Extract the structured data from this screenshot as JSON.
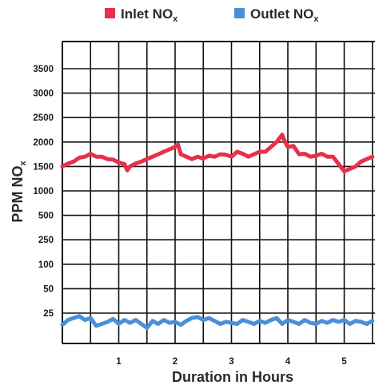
{
  "chart_data": {
    "type": "line",
    "xlabel": "Duration in Hours",
    "ylabel": "PPM NO",
    "ylabel_subscript": "x",
    "x_ticks": [
      "1",
      "2",
      "3",
      "4",
      "5"
    ],
    "y_ticks": [
      "25",
      "50",
      "100",
      "250",
      "500",
      "1000",
      "1500",
      "2000",
      "2500",
      "3000",
      "3500"
    ],
    "xlim": [
      0,
      5.55
    ],
    "grid": true,
    "legend_position": "top",
    "series": [
      {
        "name": "Inlet NO",
        "name_subscript": "x",
        "color": "#e8304a",
        "x": [
          0,
          0.1,
          0.2,
          0.3,
          0.4,
          0.5,
          0.6,
          0.7,
          0.8,
          0.9,
          1.0,
          1.1,
          1.15,
          1.2,
          1.3,
          1.4,
          1.5,
          1.6,
          1.7,
          1.8,
          1.9,
          2.0,
          2.05,
          2.1,
          2.2,
          2.3,
          2.4,
          2.5,
          2.6,
          2.7,
          2.8,
          2.9,
          3.0,
          3.1,
          3.2,
          3.3,
          3.4,
          3.5,
          3.6,
          3.7,
          3.8,
          3.9,
          3.95,
          4.0,
          4.1,
          4.2,
          4.3,
          4.4,
          4.5,
          4.6,
          4.7,
          4.8,
          4.9,
          5.0,
          5.1,
          5.2,
          5.3,
          5.4,
          5.5
        ],
        "y": [
          1500,
          1560,
          1600,
          1680,
          1700,
          1760,
          1700,
          1700,
          1650,
          1640,
          1580,
          1550,
          1420,
          1500,
          1560,
          1600,
          1650,
          1700,
          1750,
          1800,
          1850,
          1900,
          1950,
          1750,
          1700,
          1650,
          1700,
          1660,
          1720,
          1700,
          1750,
          1740,
          1700,
          1800,
          1760,
          1700,
          1750,
          1800,
          1800,
          1900,
          2000,
          2150,
          2000,
          1900,
          1920,
          1750,
          1760,
          1700,
          1720,
          1760,
          1700,
          1700,
          1550,
          1400,
          1450,
          1500,
          1600,
          1650,
          1700
        ]
      },
      {
        "name": "Outlet NO",
        "name_subscript": "x",
        "color": "#4a90d9",
        "x": [
          0,
          0.1,
          0.2,
          0.3,
          0.4,
          0.5,
          0.6,
          0.7,
          0.8,
          0.9,
          1.0,
          1.1,
          1.2,
          1.3,
          1.4,
          1.5,
          1.6,
          1.7,
          1.8,
          1.9,
          2.0,
          2.1,
          2.2,
          2.3,
          2.4,
          2.5,
          2.6,
          2.7,
          2.8,
          2.9,
          3.0,
          3.1,
          3.2,
          3.3,
          3.4,
          3.5,
          3.6,
          3.7,
          3.8,
          3.9,
          4.0,
          4.1,
          4.2,
          4.3,
          4.4,
          4.5,
          4.6,
          4.7,
          4.8,
          4.9,
          5.0,
          5.1,
          5.2,
          5.3,
          5.4,
          5.5
        ],
        "y": [
          13,
          18,
          20,
          22,
          18,
          20,
          12,
          14,
          16,
          19,
          14,
          18,
          15,
          18,
          14,
          10,
          17,
          14,
          18,
          15,
          16,
          13,
          17,
          20,
          21,
          18,
          20,
          17,
          14,
          16,
          15,
          14,
          18,
          16,
          14,
          17,
          15,
          18,
          20,
          14,
          18,
          16,
          14,
          18,
          15,
          14,
          17,
          15,
          18,
          16,
          18,
          14,
          17,
          16,
          14,
          17
        ]
      }
    ]
  }
}
